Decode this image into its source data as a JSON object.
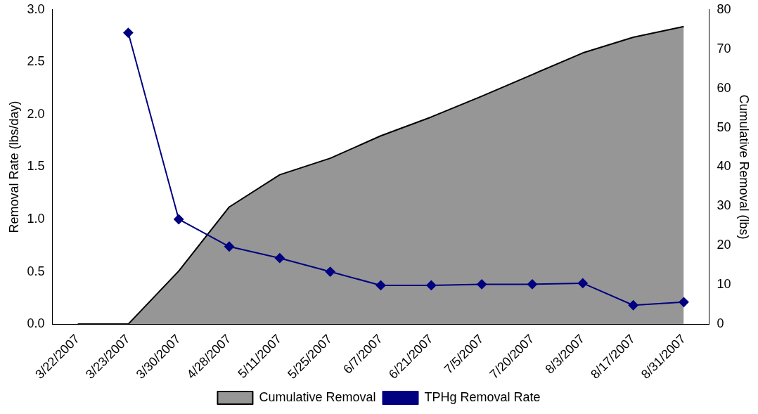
{
  "chart_data": {
    "type": "line",
    "ylabel": "Removal Rate (lbs/day)",
    "y2label": "Cumulative Removal (lbs)",
    "categories": [
      "3/22/2007",
      "3/23/2007",
      "3/30/2007",
      "4/28/2007",
      "5/11/2007",
      "5/25/2007",
      "6/7/2007",
      "6/21/2007",
      "7/5/2007",
      "7/20/2007",
      "8/3/2007",
      "8/17/2007",
      "8/31/2007"
    ],
    "series": [
      {
        "name": "Cumulative Removal",
        "type": "area",
        "axis": "y2",
        "color": "#969696",
        "values": [
          0,
          0,
          13.5,
          29.8,
          38,
          42.2,
          47.9,
          52.7,
          58,
          63.5,
          69,
          73,
          75.7
        ]
      },
      {
        "name": "TPHg Removal Rate",
        "color": "#000080",
        "marker": "diamond",
        "values": [
          null,
          2.78,
          1.0,
          0.74,
          0.63,
          0.5,
          0.37,
          0.37,
          0.38,
          0.38,
          0.39,
          0.18,
          0.21
        ]
      }
    ],
    "ylim": [
      0,
      3
    ],
    "yticks": [
      {
        "value": 0,
        "label": "0.0"
      },
      {
        "value": 0.5,
        "label": "0.5"
      },
      {
        "value": 1,
        "label": "1.0"
      },
      {
        "value": 1.5,
        "label": "1.5"
      },
      {
        "value": 2,
        "label": "2.0"
      },
      {
        "value": 2.5,
        "label": "2.5"
      },
      {
        "value": 3,
        "label": "3.0"
      }
    ],
    "y2lim": [
      0,
      80
    ],
    "y2ticks": [
      0,
      10,
      20,
      30,
      40,
      50,
      60,
      70,
      80
    ],
    "grid": false,
    "legend": "bottom"
  }
}
